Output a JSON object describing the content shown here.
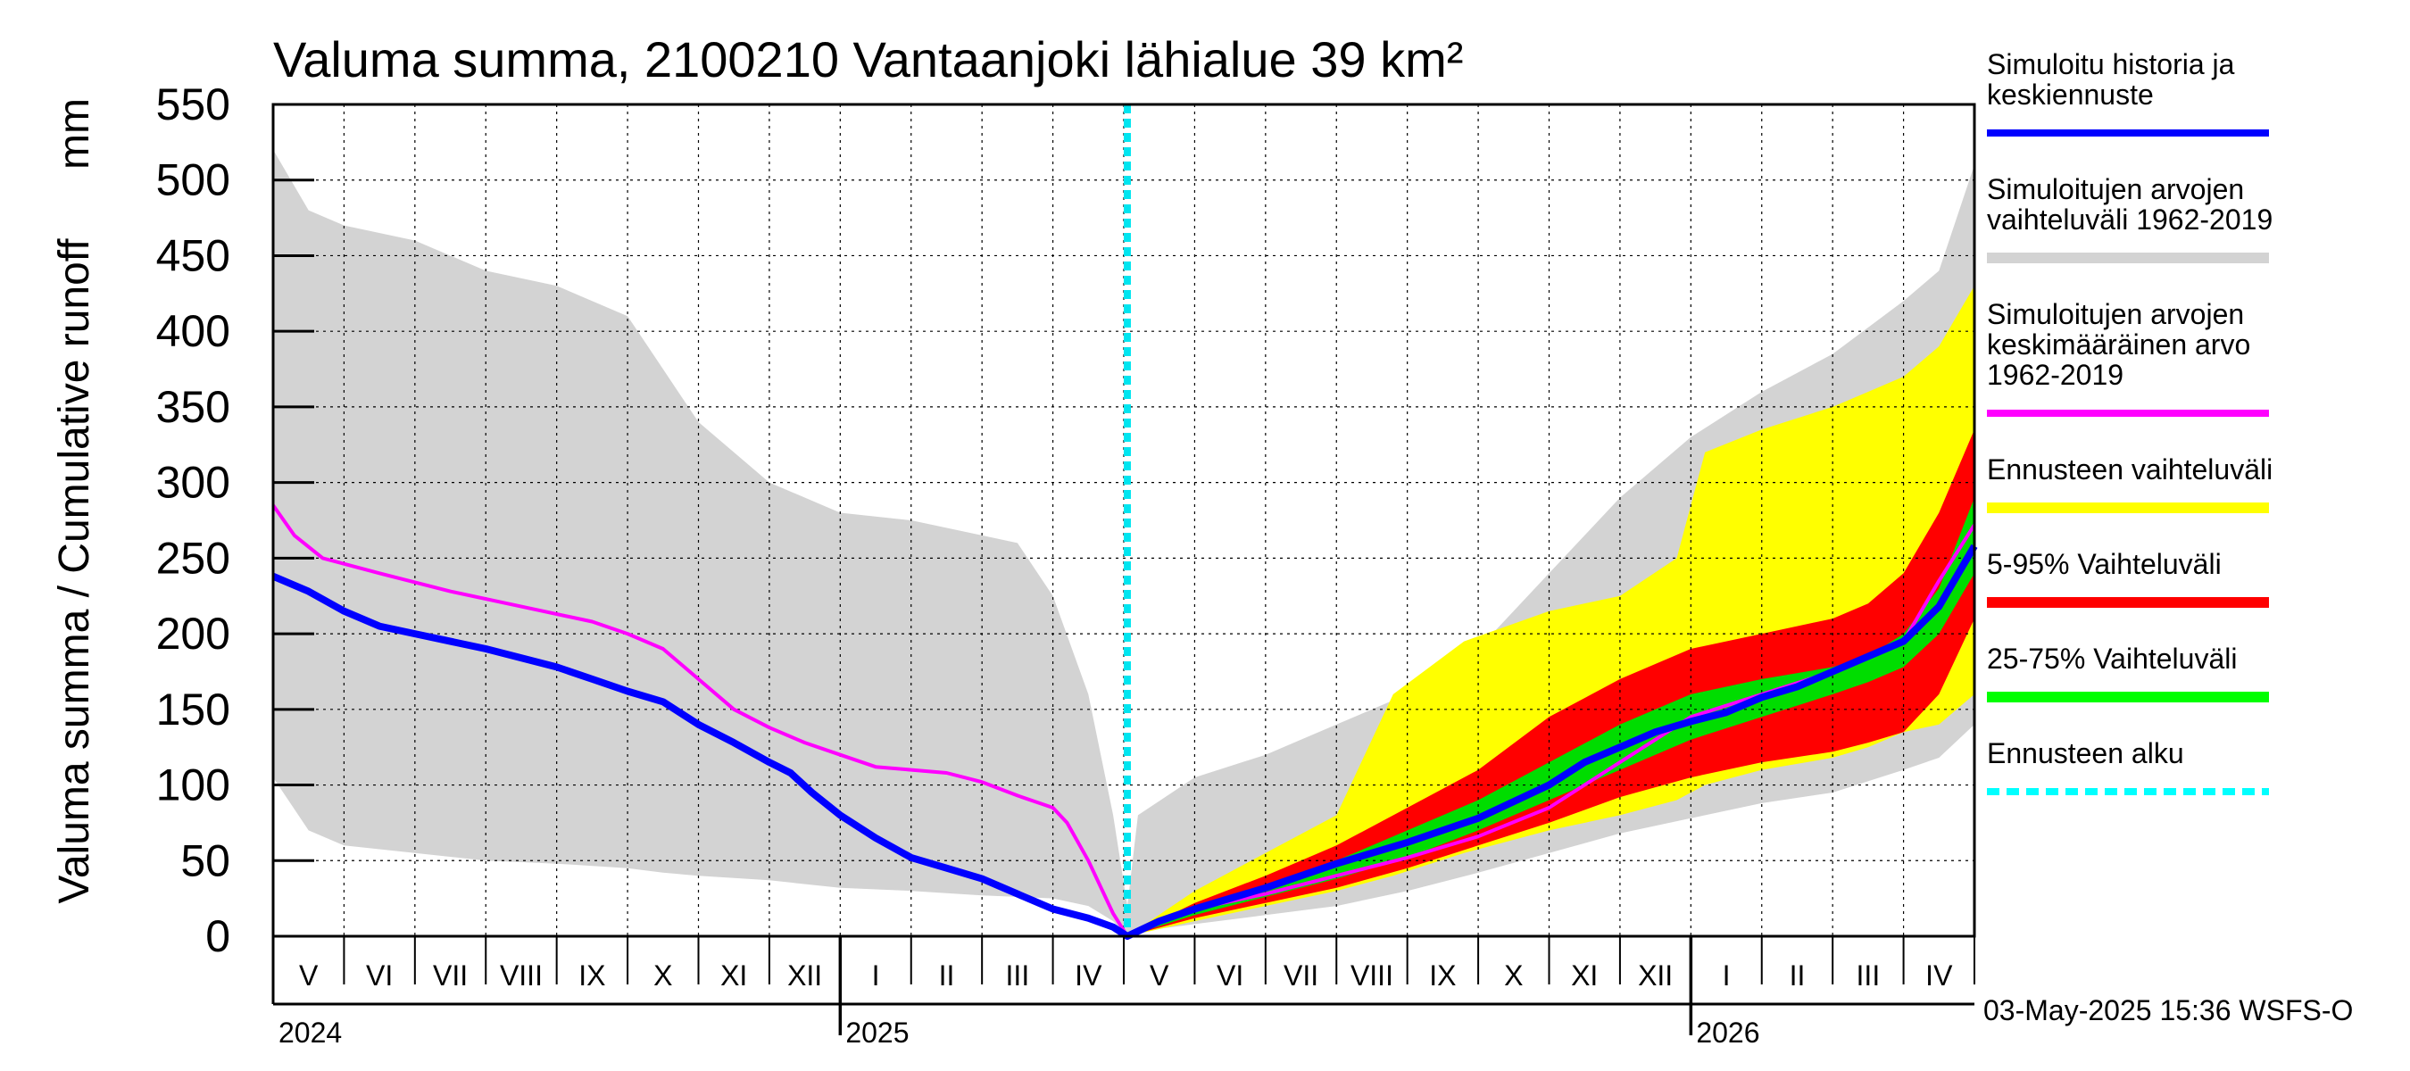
{
  "chart_data": {
    "type": "area",
    "title": "Valuma summa, 2100210 Vantaanjoki lähialue 39 km²",
    "ylabel": "Valuma summa / Cumulative runoff",
    "yunit": "mm",
    "ylim": [
      0,
      550
    ],
    "yticks": [
      0,
      50,
      100,
      150,
      200,
      250,
      300,
      350,
      400,
      450,
      500,
      550
    ],
    "xlim": [
      0,
      24
    ],
    "grid": true,
    "months": [
      {
        "label": "V",
        "x": 0.5
      },
      {
        "label": "VI",
        "x": 1.5
      },
      {
        "label": "VII",
        "x": 2.5
      },
      {
        "label": "VIII",
        "x": 3.5
      },
      {
        "label": "IX",
        "x": 4.5
      },
      {
        "label": "X",
        "x": 5.5
      },
      {
        "label": "XI",
        "x": 6.5
      },
      {
        "label": "XII",
        "x": 7.5
      },
      {
        "label": "I",
        "x": 8.5
      },
      {
        "label": "II",
        "x": 9.5
      },
      {
        "label": "III",
        "x": 10.5
      },
      {
        "label": "IV",
        "x": 11.5
      },
      {
        "label": "V",
        "x": 12.5
      },
      {
        "label": "VI",
        "x": 13.5
      },
      {
        "label": "VII",
        "x": 14.5
      },
      {
        "label": "VIII",
        "x": 15.5
      },
      {
        "label": "IX",
        "x": 16.5
      },
      {
        "label": "X",
        "x": 17.5
      },
      {
        "label": "XI",
        "x": 18.5
      },
      {
        "label": "XII",
        "x": 19.5
      },
      {
        "label": "I",
        "x": 20.5
      },
      {
        "label": "II",
        "x": 21.5
      },
      {
        "label": "III",
        "x": 22.5
      },
      {
        "label": "IV",
        "x": 23.5
      }
    ],
    "years": [
      {
        "label": "2024",
        "x": 0
      },
      {
        "label": "2025",
        "x": 8
      },
      {
        "label": "2026",
        "x": 20
      }
    ],
    "forecast_start_x": 12.05,
    "series": [
      {
        "name": "Simuloitujen arvojen vaihteluväli 1962-2019",
        "kind": "band",
        "color": "#d3d3d3",
        "x": [
          0,
          0.5,
          1,
          2,
          3,
          4,
          5,
          5.5,
          6,
          7,
          8,
          9,
          10,
          10.5,
          11,
          11.5,
          11.85,
          12.05,
          12.2,
          13,
          14,
          15,
          16,
          17,
          18,
          19,
          20,
          21,
          22,
          23,
          23.5,
          24
        ],
        "upper": [
          520,
          480,
          470,
          460,
          440,
          430,
          410,
          375,
          340,
          300,
          280,
          275,
          265,
          260,
          225,
          160,
          80,
          20,
          80,
          105,
          120,
          140,
          160,
          190,
          240,
          290,
          330,
          360,
          385,
          420,
          440,
          510
        ],
        "lower": [
          105,
          70,
          60,
          55,
          50,
          48,
          45,
          42,
          40,
          37,
          32,
          30,
          27,
          26,
          25,
          20,
          10,
          0,
          3,
          8,
          14,
          20,
          30,
          42,
          55,
          68,
          78,
          88,
          95,
          110,
          118,
          140
        ]
      },
      {
        "name": "Ennusteen vaihteluväli",
        "kind": "band",
        "color": "#ffff00",
        "x": [
          12.05,
          13,
          14,
          15,
          15.8,
          16.8,
          18,
          19,
          19.8,
          20.2,
          21,
          22,
          22.5,
          23,
          23.5,
          24
        ],
        "upper": [
          0,
          30,
          55,
          80,
          160,
          195,
          215,
          225,
          250,
          320,
          335,
          350,
          360,
          370,
          390,
          430
        ],
        "lower": [
          0,
          10,
          20,
          30,
          40,
          55,
          70,
          80,
          90,
          100,
          110,
          118,
          125,
          135,
          140,
          160
        ]
      },
      {
        "name": "5-95% Vaihteluväli",
        "kind": "band",
        "color": "#ff0000",
        "x": [
          12.05,
          13,
          14,
          15,
          16,
          17,
          18,
          19,
          20,
          21,
          22,
          22.5,
          23,
          23.5,
          24
        ],
        "upper": [
          0,
          22,
          40,
          60,
          85,
          110,
          145,
          170,
          190,
          200,
          210,
          220,
          240,
          280,
          335
        ],
        "lower": [
          0,
          12,
          22,
          32,
          45,
          60,
          75,
          92,
          105,
          115,
          122,
          128,
          135,
          160,
          210
        ]
      },
      {
        "name": "25-75% Vaihteluväli",
        "kind": "band",
        "color": "#00dd00",
        "x": [
          12.05,
          13,
          14,
          15,
          16,
          17,
          18,
          19,
          20,
          21,
          22,
          22.5,
          23,
          23.5,
          24
        ],
        "upper": [
          0,
          18,
          33,
          50,
          70,
          90,
          115,
          140,
          160,
          170,
          178,
          185,
          200,
          230,
          290
        ],
        "lower": [
          0,
          14,
          26,
          38,
          52,
          70,
          90,
          110,
          130,
          145,
          160,
          168,
          178,
          200,
          240
        ]
      },
      {
        "name": "Simuloitujen arvojen keskimääräinen arvo 1962-2019",
        "kind": "line",
        "color": "#ff00ff",
        "x": [
          0,
          0.3,
          0.7,
          1.5,
          2.5,
          3.5,
          4.5,
          5,
          5.5,
          6,
          6.5,
          7,
          7.5,
          8,
          8.5,
          9,
          9.5,
          10,
          10.5,
          11,
          11.2,
          11.5,
          11.85,
          12.05,
          12.5,
          13,
          14,
          15,
          16,
          17,
          18,
          18.5,
          19,
          19.5,
          20,
          21,
          22,
          22.5,
          23,
          23.5,
          24
        ],
        "values": [
          285,
          265,
          250,
          240,
          228,
          218,
          208,
          200,
          190,
          170,
          150,
          138,
          128,
          120,
          112,
          110,
          108,
          102,
          93,
          85,
          75,
          50,
          15,
          0,
          10,
          18,
          28,
          40,
          52,
          66,
          85,
          100,
          115,
          130,
          145,
          160,
          175,
          185,
          195,
          235,
          272
        ]
      },
      {
        "name": "Simuloitu historia ja keskiennuste",
        "kind": "line",
        "color": "#0000ff",
        "x": [
          0,
          0.5,
          1,
          1.5,
          2,
          3,
          4,
          4.5,
          5,
          5.5,
          6,
          6.5,
          7,
          7.3,
          7.6,
          8,
          8.5,
          9,
          9.5,
          10,
          10.5,
          11,
          11.5,
          11.85,
          12.05,
          12.5,
          13,
          14,
          15,
          16,
          17,
          18,
          18.5,
          19,
          19.5,
          20,
          20.5,
          21,
          21.5,
          22,
          22.5,
          23,
          23.5,
          24
        ],
        "values": [
          238,
          228,
          215,
          205,
          200,
          190,
          178,
          170,
          162,
          155,
          140,
          128,
          115,
          108,
          95,
          80,
          65,
          52,
          45,
          38,
          28,
          18,
          12,
          6,
          0,
          10,
          18,
          32,
          48,
          62,
          78,
          100,
          115,
          125,
          135,
          142,
          148,
          158,
          165,
          175,
          185,
          195,
          218,
          258
        ]
      }
    ],
    "legend": {
      "placement": "right",
      "items": [
        {
          "lines": [
            "Simuloitu historia ja",
            "keskiennuste"
          ],
          "color": "#0000ff",
          "kind": "line"
        },
        {
          "lines": [
            "Simuloitujen arvojen",
            "vaihteluväli 1962-2019"
          ],
          "color": "#d3d3d3",
          "kind": "band"
        },
        {
          "lines": [
            "Simuloitujen arvojen",
            "keskimääräinen arvo",
            "   1962-2019"
          ],
          "color": "#ff00ff",
          "kind": "line"
        },
        {
          "lines": [
            "Ennusteen vaihteluväli"
          ],
          "color": "#ffff00",
          "kind": "band"
        },
        {
          "lines": [
            "5-95% Vaihteluväli"
          ],
          "color": "#ff0000",
          "kind": "band"
        },
        {
          "lines": [
            "25-75% Vaihteluväli"
          ],
          "color": "#00ff00",
          "kind": "band"
        },
        {
          "lines": [
            "Ennusteen alku"
          ],
          "color": "#00ffff",
          "kind": "dashed"
        }
      ]
    },
    "footer": "03-May-2025 15:36 WSFS-O"
  }
}
